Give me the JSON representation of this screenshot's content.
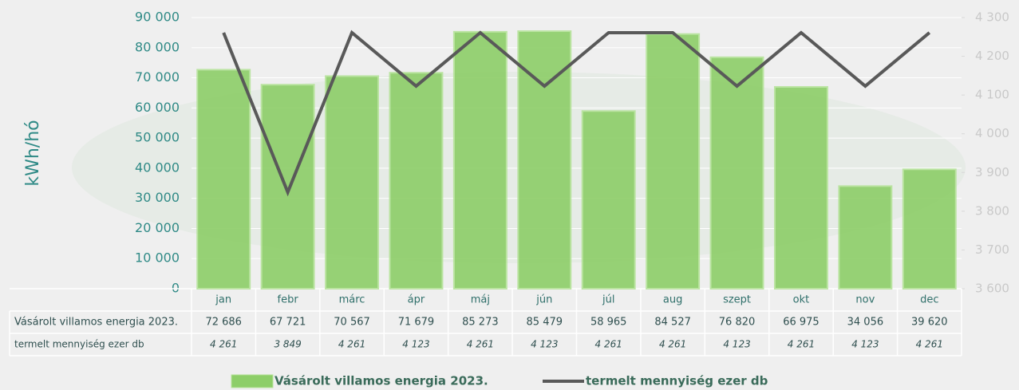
{
  "chart_data": {
    "type": "bar-line",
    "y_axis_label": "kWh/hó",
    "categories": [
      "jan",
      "febr",
      "márc",
      "ápr",
      "máj",
      "jún",
      "júl",
      "aug",
      "szept",
      "okt",
      "nov",
      "dec"
    ],
    "series": [
      {
        "name": "Vásárolt villamos energia 2023.",
        "type": "bar",
        "color": "#8dce68",
        "values": [
          72686,
          67721,
          70567,
          71679,
          85273,
          85479,
          58965,
          84527,
          76820,
          66975,
          34056,
          39620
        ],
        "value_labels": [
          "72 686",
          "67 721",
          "70 567",
          "71 679",
          "85 273",
          "85 479",
          "58 965",
          "84 527",
          "76 820",
          "66 975",
          "34 056",
          "39 620"
        ]
      },
      {
        "name": "termelt mennyiség ezer db",
        "type": "line",
        "axis": "y2",
        "color": "#595959",
        "values": [
          4261,
          3849,
          4261,
          4123,
          4261,
          4123,
          4261,
          4261,
          4123,
          4261,
          4123,
          4261
        ],
        "value_labels": [
          "4 261",
          "3 849",
          "4 261",
          "4 123",
          "4 261",
          "4 123",
          "4 261",
          "4 261",
          "4 123",
          "4 261",
          "4 123",
          "4 261"
        ]
      }
    ],
    "ylim": [
      0,
      90000
    ],
    "yticks": [
      0,
      {
        "value": 10000,
        "label": "10 000"
      },
      {
        "value": 20000,
        "label": "20 000"
      },
      {
        "value": 30000,
        "label": "30 000"
      },
      {
        "value": 40000,
        "label": "40 000"
      },
      {
        "value": 50000,
        "label": "50 000"
      },
      {
        "value": 60000,
        "label": "60 000"
      },
      {
        "value": 70000,
        "label": "70 000"
      },
      {
        "value": 80000,
        "label": "80 000"
      },
      {
        "value": 90000,
        "label": "90 000"
      }
    ],
    "y2lim": [
      3600,
      4300
    ],
    "y2ticks": [
      {
        "value": 3600,
        "label": "3 600"
      },
      {
        "value": 3700,
        "label": "3 700"
      },
      {
        "value": 3800,
        "label": "3 800"
      },
      {
        "value": 3900,
        "label": "3 900"
      },
      {
        "value": 4000,
        "label": "4 000"
      },
      {
        "value": 4100,
        "label": "4 100"
      },
      {
        "value": 4200,
        "label": "4 200"
      },
      {
        "value": 4300,
        "label": "4 300"
      }
    ],
    "grid": true
  }
}
